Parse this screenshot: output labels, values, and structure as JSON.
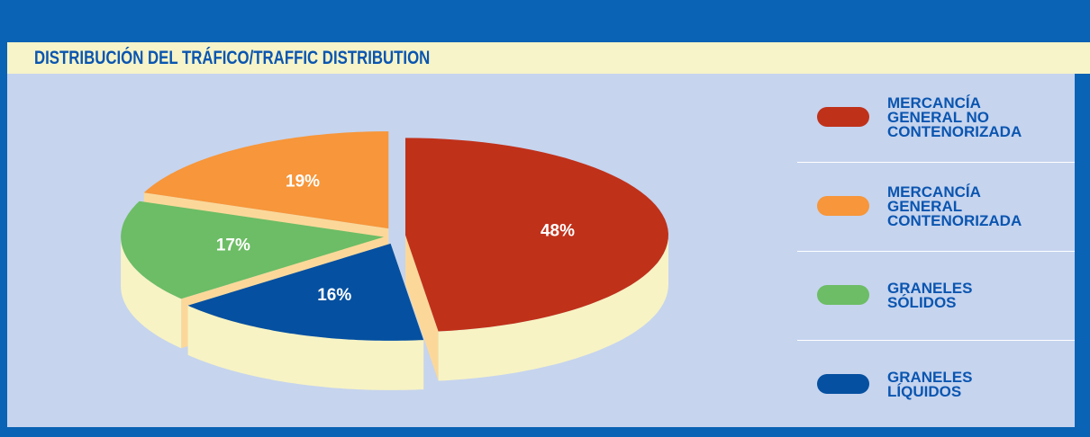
{
  "chart_data": {
    "type": "pie",
    "title": "DISTRIBUCIÓN DEL TRÁFICO/TRAFFIC DISTRIBUTION",
    "categories": [
      "MERCANCÍA GENERAL NO CONTENORIZADA",
      "GRANELES LÍQUIDOS",
      "GRANELES SÓLIDOS",
      "MERCANCÍA GENERAL CONTENORIZADA"
    ],
    "values": [
      48,
      16,
      17,
      19
    ],
    "value_labels": [
      "48%",
      "16%",
      "17%",
      "19%"
    ],
    "colors": [
      "#c0311a",
      "#0550a0",
      "#6cbd65",
      "#f7963a"
    ],
    "legend_order": [
      0,
      3,
      2,
      1
    ]
  }
}
